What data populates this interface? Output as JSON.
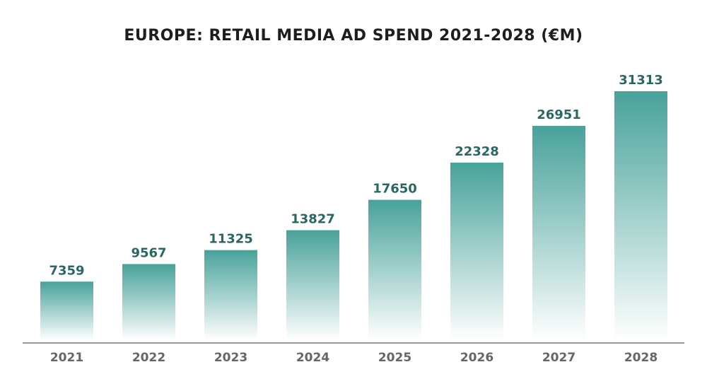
{
  "chart_data": {
    "type": "bar",
    "title": "EUROPE: RETAIL MEDIA AD SPEND 2021-2028 (€M)",
    "categories": [
      "2021",
      "2022",
      "2023",
      "2024",
      "2025",
      "2026",
      "2027",
      "2028"
    ],
    "values": [
      7359,
      9567,
      11325,
      13827,
      17650,
      22328,
      26951,
      31313
    ],
    "xlabel": "",
    "ylabel": "",
    "ylim": [
      0,
      31313
    ],
    "grid": false,
    "colors": {
      "bar_top": "#48a29a",
      "bar_bottom": "#ffffff",
      "value_label": "#2b6762",
      "tick_label": "#666666",
      "axis": "#777777"
    }
  }
}
